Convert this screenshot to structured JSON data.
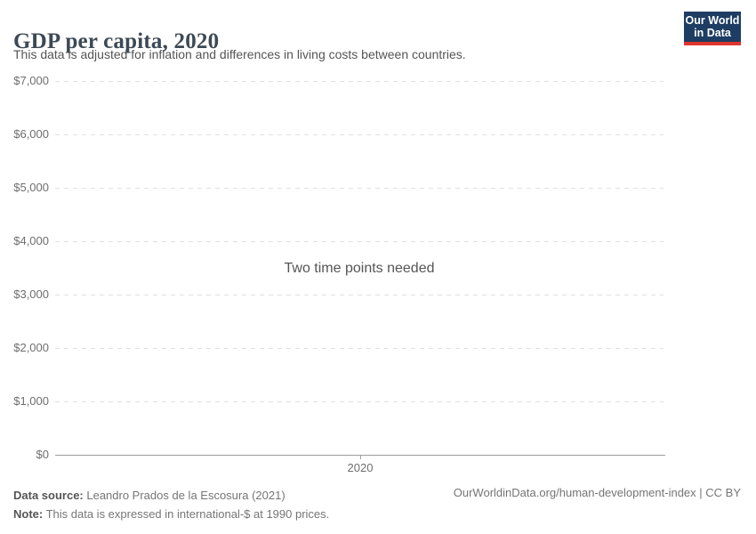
{
  "header": {
    "title": "GDP per capita, 2020",
    "subtitle": "This data is adjusted for inflation and differences in living costs between countries.",
    "logo": {
      "line1": "Our World",
      "line2": "in Data"
    }
  },
  "chart_data": {
    "type": "line",
    "title": "GDP per capita, 2020",
    "subtitle": "This data is adjusted for inflation and differences in living costs between countries.",
    "status_message": "Two time points needed",
    "series": [],
    "categories": [
      2020
    ],
    "xticks": [
      "2020"
    ],
    "yticks": [
      {
        "value": 0,
        "label": "$0"
      },
      {
        "value": 1000,
        "label": "$1,000"
      },
      {
        "value": 2000,
        "label": "$2,000"
      },
      {
        "value": 3000,
        "label": "$3,000"
      },
      {
        "value": 4000,
        "label": "$4,000"
      },
      {
        "value": 5000,
        "label": "$5,000"
      },
      {
        "value": 6000,
        "label": "$6,000"
      },
      {
        "value": 7000,
        "label": "$7,000"
      }
    ],
    "ylim": [
      0,
      7000
    ],
    "xlabel": "",
    "ylabel": "",
    "grid": "horizontal-dashed",
    "legend": "none",
    "notes": "Empty plot: no data series rendered, placeholder message shown in plot center"
  },
  "footer": {
    "datasource_label": "Data source:",
    "datasource_value": " Leandro Prados de la Escosura (2021)",
    "note_label": "Note:",
    "note_value": " This data is expressed in international-$ at 1990 prices.",
    "attribution": "OurWorldinData.org/human-development-index | CC BY"
  },
  "colors": {
    "background": "#ffffff",
    "title_text": "#3d4954",
    "subtitle_text": "#555555",
    "axis_label": "#6e6e6e",
    "gridline": "#e0e0e0",
    "axis_line": "#9e9e9e",
    "message_text": "#555555",
    "footer_text": "#757575",
    "logo_navy": "#1d3d63",
    "logo_red": "#e0342c"
  }
}
